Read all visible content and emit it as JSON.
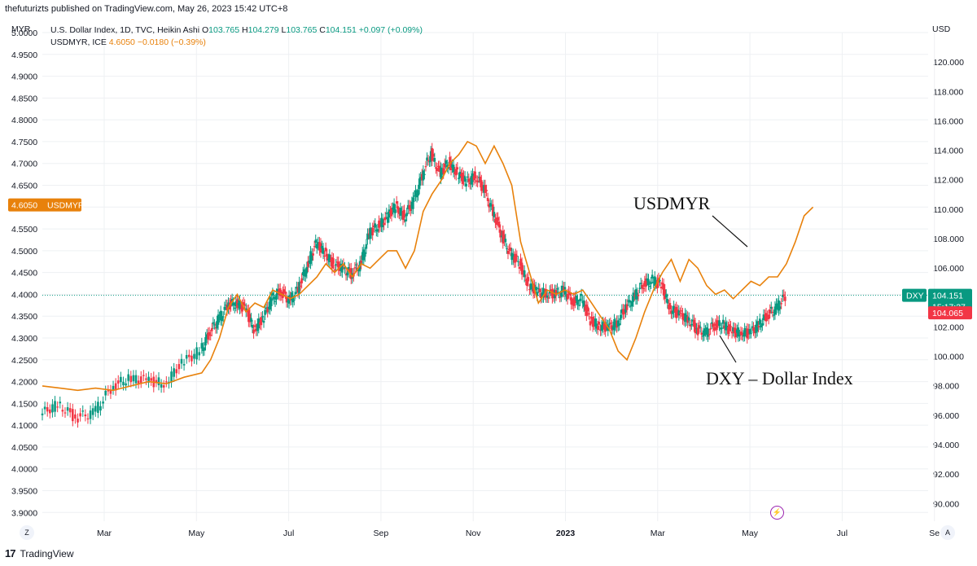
{
  "header": {
    "publisher": "thefuturizts published on TradingView.com, May 26, 2023 15:42 UTC+8"
  },
  "legend": {
    "dxy_title": "U.S. Dollar Index, 1D, TVC, Heikin Ashi",
    "dxy_o_label": "O",
    "dxy_o": "103.765",
    "dxy_h_label": "H",
    "dxy_h": "104.279",
    "dxy_l_label": "L",
    "dxy_l": "103.765",
    "dxy_c_label": "C",
    "dxy_c": "104.151",
    "dxy_change": "+0.097 (+0.09%)",
    "myr_title": "USDMYR, ICE",
    "myr_value": "4.6050",
    "myr_change": "−0.0180 (−0.39%)"
  },
  "left_unit": "MYR",
  "right_unit": "USD",
  "footer": {
    "brand": "TradingView",
    "logo": "17"
  },
  "buttons": {
    "zoom": "Z",
    "auto": "A"
  },
  "colors": {
    "up": "#089981",
    "down": "#f23645",
    "line": "#e8810b",
    "grid": "#eef0f3",
    "axis_text": "#131722",
    "crosshair": "#089981"
  },
  "chart_data": {
    "type": "line",
    "x_ticks": [
      "Mar",
      "May",
      "Jul",
      "Sep",
      "Nov",
      "2023",
      "Mar",
      "May",
      "Jul",
      "Se"
    ],
    "y_left": {
      "label": "MYR",
      "min": 3.88,
      "max": 5.0,
      "ticks": [
        "5.0000",
        "4.9500",
        "4.9000",
        "4.8500",
        "4.8000",
        "4.7500",
        "4.7000",
        "4.6500",
        "4.6000",
        "4.5500",
        "4.5000",
        "4.4500",
        "4.4000",
        "4.3500",
        "4.3000",
        "4.2500",
        "4.2000",
        "4.1500",
        "4.1000",
        "4.0500",
        "4.0000",
        "3.9500",
        "3.9000"
      ]
    },
    "y_right": {
      "label": "USD",
      "min": 88.8,
      "max": 122.0,
      "ticks": [
        "120.000",
        "118.000",
        "116.000",
        "114.000",
        "112.000",
        "110.000",
        "108.000",
        "106.000",
        "104.000",
        "102.000",
        "100.000",
        "98.000",
        "96.000",
        "94.000",
        "92.000",
        "90.000"
      ]
    },
    "series": [
      {
        "name": "USDMYR",
        "axis": "left",
        "style": "line",
        "color": "#e8810b",
        "values": [
          [
            0,
            4.19
          ],
          [
            0.02,
            4.185
          ],
          [
            0.04,
            4.18
          ],
          [
            0.06,
            4.185
          ],
          [
            0.08,
            4.18
          ],
          [
            0.1,
            4.19
          ],
          [
            0.12,
            4.2
          ],
          [
            0.14,
            4.195
          ],
          [
            0.16,
            4.21
          ],
          [
            0.18,
            4.22
          ],
          [
            0.19,
            4.25
          ],
          [
            0.2,
            4.3
          ],
          [
            0.21,
            4.37
          ],
          [
            0.22,
            4.4
          ],
          [
            0.23,
            4.36
          ],
          [
            0.24,
            4.38
          ],
          [
            0.25,
            4.37
          ],
          [
            0.26,
            4.41
          ],
          [
            0.27,
            4.4
          ],
          [
            0.28,
            4.39
          ],
          [
            0.29,
            4.4
          ],
          [
            0.3,
            4.42
          ],
          [
            0.31,
            4.44
          ],
          [
            0.32,
            4.47
          ],
          [
            0.33,
            4.45
          ],
          [
            0.34,
            4.47
          ],
          [
            0.35,
            4.44
          ],
          [
            0.36,
            4.47
          ],
          [
            0.37,
            4.46
          ],
          [
            0.38,
            4.48
          ],
          [
            0.39,
            4.5
          ],
          [
            0.4,
            4.5
          ],
          [
            0.41,
            4.46
          ],
          [
            0.42,
            4.5
          ],
          [
            0.43,
            4.59
          ],
          [
            0.44,
            4.63
          ],
          [
            0.45,
            4.66
          ],
          [
            0.46,
            4.7
          ],
          [
            0.47,
            4.72
          ],
          [
            0.48,
            4.75
          ],
          [
            0.49,
            4.74
          ],
          [
            0.5,
            4.7
          ],
          [
            0.51,
            4.74
          ],
          [
            0.52,
            4.7
          ],
          [
            0.53,
            4.65
          ],
          [
            0.54,
            4.52
          ],
          [
            0.55,
            4.45
          ],
          [
            0.56,
            4.38
          ],
          [
            0.57,
            4.41
          ],
          [
            0.58,
            4.4
          ],
          [
            0.59,
            4.41
          ],
          [
            0.6,
            4.4
          ],
          [
            0.61,
            4.41
          ],
          [
            0.62,
            4.38
          ],
          [
            0.63,
            4.35
          ],
          [
            0.64,
            4.32
          ],
          [
            0.65,
            4.27
          ],
          [
            0.66,
            4.25
          ],
          [
            0.67,
            4.3
          ],
          [
            0.68,
            4.36
          ],
          [
            0.69,
            4.41
          ],
          [
            0.7,
            4.45
          ],
          [
            0.71,
            4.48
          ],
          [
            0.72,
            4.43
          ],
          [
            0.73,
            4.48
          ],
          [
            0.74,
            4.46
          ],
          [
            0.75,
            4.42
          ],
          [
            0.76,
            4.4
          ],
          [
            0.77,
            4.41
          ],
          [
            0.78,
            4.39
          ],
          [
            0.79,
            4.41
          ],
          [
            0.8,
            4.43
          ],
          [
            0.81,
            4.42
          ],
          [
            0.82,
            4.44
          ],
          [
            0.83,
            4.44
          ],
          [
            0.84,
            4.47
          ],
          [
            0.85,
            4.52
          ],
          [
            0.86,
            4.58
          ],
          [
            0.87,
            4.6
          ]
        ]
      },
      {
        "name": "DXY",
        "axis": "right",
        "style": "candles",
        "values": [
          [
            0,
            96.0
          ],
          [
            0.02,
            96.8
          ],
          [
            0.04,
            95.8
          ],
          [
            0.06,
            96.2
          ],
          [
            0.08,
            97.8
          ],
          [
            0.1,
            98.6
          ],
          [
            0.12,
            98.3
          ],
          [
            0.14,
            98.2
          ],
          [
            0.16,
            99.5
          ],
          [
            0.18,
            100.4
          ],
          [
            0.19,
            101.6
          ],
          [
            0.2,
            102.5
          ],
          [
            0.21,
            103.4
          ],
          [
            0.22,
            103.7
          ],
          [
            0.23,
            103.2
          ],
          [
            0.24,
            101.9
          ],
          [
            0.25,
            102.5
          ],
          [
            0.26,
            103.9
          ],
          [
            0.27,
            104.4
          ],
          [
            0.28,
            103.8
          ],
          [
            0.29,
            104.5
          ],
          [
            0.3,
            106.2
          ],
          [
            0.31,
            107.6
          ],
          [
            0.32,
            107.1
          ],
          [
            0.33,
            106.2
          ],
          [
            0.34,
            106.0
          ],
          [
            0.35,
            105.6
          ],
          [
            0.36,
            106.2
          ],
          [
            0.37,
            108.3
          ],
          [
            0.38,
            108.9
          ],
          [
            0.39,
            109.4
          ],
          [
            0.4,
            110.2
          ],
          [
            0.41,
            109.5
          ],
          [
            0.42,
            110.5
          ],
          [
            0.43,
            112.3
          ],
          [
            0.44,
            113.8
          ],
          [
            0.45,
            112.4
          ],
          [
            0.46,
            113.2
          ],
          [
            0.47,
            112.4
          ],
          [
            0.48,
            111.8
          ],
          [
            0.49,
            112.3
          ],
          [
            0.5,
            111.3
          ],
          [
            0.51,
            109.8
          ],
          [
            0.52,
            108.2
          ],
          [
            0.53,
            106.9
          ],
          [
            0.54,
            106.3
          ],
          [
            0.55,
            104.9
          ],
          [
            0.56,
            104.3
          ],
          [
            0.57,
            104.3
          ],
          [
            0.58,
            104.2
          ],
          [
            0.59,
            104.5
          ],
          [
            0.6,
            103.7
          ],
          [
            0.61,
            103.9
          ],
          [
            0.62,
            102.4
          ],
          [
            0.63,
            102.1
          ],
          [
            0.64,
            101.9
          ],
          [
            0.65,
            102.3
          ],
          [
            0.66,
            103.3
          ],
          [
            0.67,
            104.1
          ],
          [
            0.68,
            104.9
          ],
          [
            0.69,
            105.2
          ],
          [
            0.7,
            104.8
          ],
          [
            0.71,
            103.3
          ],
          [
            0.72,
            102.8
          ],
          [
            0.73,
            102.6
          ],
          [
            0.74,
            101.8
          ],
          [
            0.75,
            101.6
          ],
          [
            0.76,
            102.1
          ],
          [
            0.77,
            102.2
          ],
          [
            0.78,
            101.6
          ],
          [
            0.79,
            101.7
          ],
          [
            0.8,
            101.5
          ],
          [
            0.81,
            102.2
          ],
          [
            0.82,
            102.8
          ],
          [
            0.83,
            103.3
          ],
          [
            0.84,
            104.1
          ]
        ]
      }
    ],
    "price_tags": [
      {
        "axis": "left",
        "label": "USDMYR",
        "value": "4.6050",
        "color": "#e8810b"
      },
      {
        "axis": "right",
        "label": "DXY",
        "value": "104.151",
        "sub": "15:17:27",
        "color": "#089981"
      },
      {
        "axis": "right",
        "value": "104.065",
        "color": "#f23645"
      }
    ],
    "annotations": [
      "USDMYR",
      "DXY – Dollar Index"
    ],
    "grid": true
  }
}
